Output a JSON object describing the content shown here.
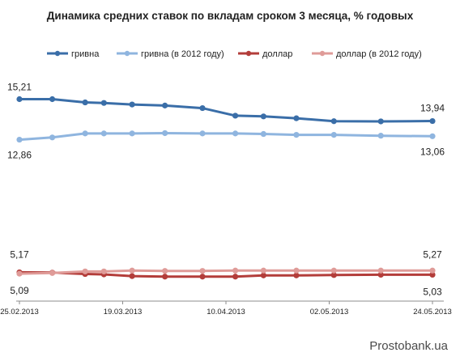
{
  "chart_data": {
    "type": "line",
    "title": "Динамика средних ставок по вкладам сроком 3 месяца, % годовых",
    "x_ticks": [
      "25.02.2013",
      "19.03.2013",
      "10.04.2013",
      "02.05.2013",
      "24.05.2013"
    ],
    "x": [
      "25.02.2013",
      "04.03.2013",
      "11.03.2013",
      "15.03.2013",
      "21.03.2013",
      "28.03.2013",
      "05.04.2013",
      "12.04.2013",
      "18.04.2013",
      "25.04.2013",
      "03.05.2013",
      "13.05.2013",
      "24.05.2013"
    ],
    "ylim": [
      3.5,
      16.5
    ],
    "grid": false,
    "legend_position": "top",
    "series": [
      {
        "name": "гривна",
        "color": "#3a6ea8",
        "values": [
          15.21,
          15.21,
          15.02,
          14.99,
          14.9,
          14.84,
          14.69,
          14.25,
          14.21,
          14.1,
          13.93,
          13.92,
          13.94
        ]
      },
      {
        "name": "гривна (в 2012 году)",
        "color": "#8fb5df",
        "values": [
          12.86,
          12.99,
          13.22,
          13.22,
          13.22,
          13.24,
          13.22,
          13.22,
          13.19,
          13.14,
          13.14,
          13.09,
          13.06
        ]
      },
      {
        "name": "доллар",
        "color": "#b33d3a",
        "values": [
          5.17,
          5.15,
          5.07,
          5.05,
          4.95,
          4.92,
          4.92,
          4.92,
          4.99,
          4.99,
          5.01,
          5.03,
          5.03
        ]
      },
      {
        "name": "доллар (в 2012 году)",
        "color": "#df9b98",
        "values": [
          5.09,
          5.13,
          5.22,
          5.22,
          5.27,
          5.25,
          5.25,
          5.27,
          5.27,
          5.27,
          5.27,
          5.27,
          5.27
        ]
      }
    ],
    "data_labels": [
      {
        "series": 0,
        "index": 0,
        "text": "15,21"
      },
      {
        "series": 0,
        "index": 12,
        "text": "13,94"
      },
      {
        "series": 1,
        "index": 0,
        "text": "12,86"
      },
      {
        "series": 1,
        "index": 12,
        "text": "13,06"
      },
      {
        "series": 2,
        "index": 0,
        "text": "5,17"
      },
      {
        "series": 2,
        "index": 12,
        "text": "5,03"
      },
      {
        "series": 3,
        "index": 0,
        "text": "5,09"
      },
      {
        "series": 3,
        "index": 12,
        "text": "5,27"
      }
    ]
  },
  "watermark": "Prostobank.ua"
}
